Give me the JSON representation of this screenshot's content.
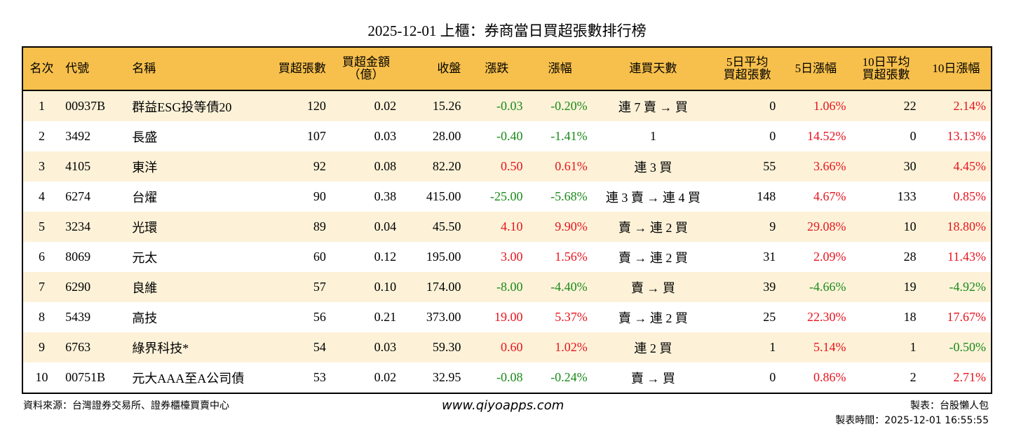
{
  "title": "2025-12-01 上櫃：券商當日買超張數排行榜",
  "colors": {
    "header": "#f7c04c",
    "row_alt": "#fdf2d8",
    "up": "#e8141e",
    "down": "#1a8a1a"
  },
  "headers": [
    "名次",
    "代號",
    "名稱",
    "買超張數",
    "買超金額\n（億）",
    "收盤",
    "漲跌",
    "漲幅",
    "連買天數",
    "5日平均\n買超張數",
    "5日漲幅",
    "10日平均\n買超張數",
    "10日漲幅"
  ],
  "rows": [
    [
      "1",
      "00937B",
      "群益ESG投等債20",
      "120",
      "0.02",
      "15.26",
      "-0.03",
      "-0.20%",
      "連 7 賣 → 買",
      "0",
      "1.06%",
      "22",
      "2.14%"
    ],
    [
      "2",
      "3492",
      "長盛",
      "107",
      "0.03",
      "28.00",
      "-0.40",
      "-1.41%",
      "1",
      "0",
      "14.52%",
      "0",
      "13.13%"
    ],
    [
      "3",
      "4105",
      "東洋",
      "92",
      "0.08",
      "82.20",
      "0.50",
      "0.61%",
      "連 3 買",
      "55",
      "3.66%",
      "30",
      "4.45%"
    ],
    [
      "4",
      "6274",
      "台燿",
      "90",
      "0.38",
      "415.00",
      "-25.00",
      "-5.68%",
      "連 3 賣 → 連 4 買",
      "148",
      "4.67%",
      "133",
      "0.85%"
    ],
    [
      "5",
      "3234",
      "光環",
      "89",
      "0.04",
      "45.50",
      "4.10",
      "9.90%",
      "賣 → 連 2 買",
      "9",
      "29.08%",
      "10",
      "18.80%"
    ],
    [
      "6",
      "8069",
      "元太",
      "60",
      "0.12",
      "195.00",
      "3.00",
      "1.56%",
      "賣 → 連 2 買",
      "31",
      "2.09%",
      "28",
      "11.43%"
    ],
    [
      "7",
      "6290",
      "良維",
      "57",
      "0.10",
      "174.00",
      "-8.00",
      "-4.40%",
      "賣 → 買",
      "39",
      "-4.66%",
      "19",
      "-4.92%"
    ],
    [
      "8",
      "5439",
      "高技",
      "56",
      "0.21",
      "373.00",
      "19.00",
      "5.37%",
      "賣 → 連 2 買",
      "25",
      "22.30%",
      "18",
      "17.67%"
    ],
    [
      "9",
      "6763",
      "綠界科技*",
      "54",
      "0.03",
      "59.30",
      "0.60",
      "1.02%",
      "連 2 買",
      "1",
      "5.14%",
      "1",
      "-0.50%"
    ],
    [
      "10",
      "00751B",
      "元大AAA至A公司債",
      "53",
      "0.02",
      "32.95",
      "-0.08",
      "-0.24%",
      "賣 → 買",
      "0",
      "0.86%",
      "2",
      "2.71%"
    ]
  ],
  "footer": {
    "source": "資料來源：台灣證券交易所、證券櫃檯買賣中心",
    "website": "www.qiyoapps.com",
    "maker": "製表：台股懶人包",
    "time": "製表時間：2025-12-01 16:55:55"
  }
}
